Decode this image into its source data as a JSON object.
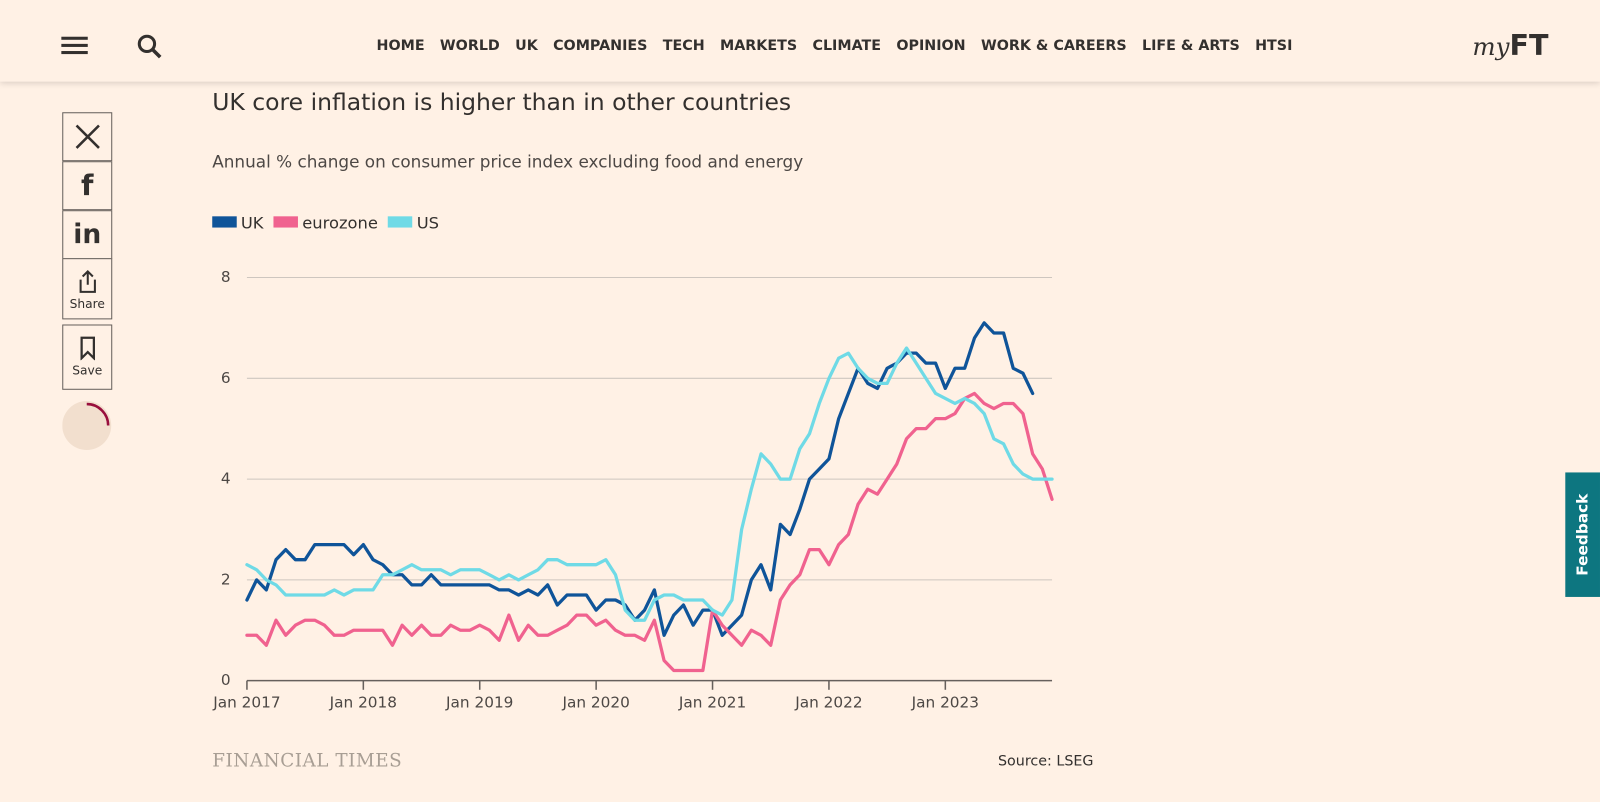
{
  "nav": {
    "items": [
      "HOME",
      "WORLD",
      "UK",
      "COMPANIES",
      "TECH",
      "MARKETS",
      "CLIMATE",
      "OPINION",
      "WORK & CAREERS",
      "LIFE & ARTS",
      "HTSI"
    ],
    "logo_my": "my",
    "logo_ft": "FT"
  },
  "share": {
    "share": "Share",
    "save": "Save"
  },
  "feedback": "Feedback",
  "chart_data": {
    "type": "line",
    "title": "UK core inflation is higher than in other countries",
    "subtitle": "Annual % change on consumer price index excluding food and energy",
    "x": [
      "2017-01",
      "2017-02",
      "2017-03",
      "2017-04",
      "2017-05",
      "2017-06",
      "2017-07",
      "2017-08",
      "2017-09",
      "2017-10",
      "2017-11",
      "2017-12",
      "2018-01",
      "2018-02",
      "2018-03",
      "2018-04",
      "2018-05",
      "2018-06",
      "2018-07",
      "2018-08",
      "2018-09",
      "2018-10",
      "2018-11",
      "2018-12",
      "2019-01",
      "2019-02",
      "2019-03",
      "2019-04",
      "2019-05",
      "2019-06",
      "2019-07",
      "2019-08",
      "2019-09",
      "2019-10",
      "2019-11",
      "2019-12",
      "2020-01",
      "2020-02",
      "2020-03",
      "2020-04",
      "2020-05",
      "2020-06",
      "2020-07",
      "2020-08",
      "2020-09",
      "2020-10",
      "2020-11",
      "2020-12",
      "2021-01",
      "2021-02",
      "2021-03",
      "2021-04",
      "2021-05",
      "2021-06",
      "2021-07",
      "2021-08",
      "2021-09",
      "2021-10",
      "2021-11",
      "2021-12",
      "2022-01",
      "2022-02",
      "2022-03",
      "2022-04",
      "2022-05",
      "2022-06",
      "2022-07",
      "2022-08",
      "2022-09",
      "2022-10",
      "2022-11",
      "2022-12",
      "2023-01",
      "2023-02",
      "2023-03",
      "2023-04",
      "2023-05",
      "2023-06",
      "2023-07",
      "2023-08",
      "2023-09",
      "2023-10",
      "2023-11",
      "2023-12"
    ],
    "series": [
      {
        "name": "UK",
        "color": "#0f5499",
        "values": [
          1.6,
          2.0,
          1.8,
          2.4,
          2.6,
          2.4,
          2.4,
          2.7,
          2.7,
          2.7,
          2.7,
          2.5,
          2.7,
          2.4,
          2.3,
          2.1,
          2.1,
          1.9,
          1.9,
          2.1,
          1.9,
          1.9,
          1.9,
          1.9,
          1.9,
          1.9,
          1.8,
          1.8,
          1.7,
          1.8,
          1.7,
          1.9,
          1.5,
          1.7,
          1.7,
          1.7,
          1.4,
          1.6,
          1.6,
          1.5,
          1.2,
          1.4,
          1.8,
          0.9,
          1.3,
          1.5,
          1.1,
          1.4,
          1.4,
          0.9,
          1.1,
          1.3,
          2.0,
          2.3,
          1.8,
          3.1,
          2.9,
          3.4,
          4.0,
          4.2,
          4.4,
          5.2,
          5.7,
          6.2,
          5.9,
          5.8,
          6.2,
          6.3,
          6.5,
          6.5,
          6.3,
          6.3,
          5.8,
          6.2,
          6.2,
          6.8,
          7.1,
          6.9,
          6.9,
          6.2,
          6.1,
          5.7,
          null,
          null
        ]
      },
      {
        "name": "eurozone",
        "color": "#f0628f",
        "values": [
          0.9,
          0.9,
          0.7,
          1.2,
          0.9,
          1.1,
          1.2,
          1.2,
          1.1,
          0.9,
          0.9,
          1.0,
          1.0,
          1.0,
          1.0,
          0.7,
          1.1,
          0.9,
          1.1,
          0.9,
          0.9,
          1.1,
          1.0,
          1.0,
          1.1,
          1.0,
          0.8,
          1.3,
          0.8,
          1.1,
          0.9,
          0.9,
          1.0,
          1.1,
          1.3,
          1.3,
          1.1,
          1.2,
          1.0,
          0.9,
          0.9,
          0.8,
          1.2,
          0.4,
          0.2,
          0.2,
          0.2,
          0.2,
          1.4,
          1.1,
          0.9,
          0.7,
          1.0,
          0.9,
          0.7,
          1.6,
          1.9,
          2.1,
          2.6,
          2.6,
          2.3,
          2.7,
          2.9,
          3.5,
          3.8,
          3.7,
          4.0,
          4.3,
          4.8,
          5.0,
          5.0,
          5.2,
          5.2,
          5.3,
          5.6,
          5.7,
          5.5,
          5.4,
          5.5,
          5.5,
          5.3,
          4.5,
          4.2,
          3.6
        ]
      },
      {
        "name": "US",
        "color": "#6fdae6",
        "values": [
          2.3,
          2.2,
          2.0,
          1.9,
          1.7,
          1.7,
          1.7,
          1.7,
          1.7,
          1.8,
          1.7,
          1.8,
          1.8,
          1.8,
          2.1,
          2.1,
          2.2,
          2.3,
          2.2,
          2.2,
          2.2,
          2.1,
          2.2,
          2.2,
          2.2,
          2.1,
          2.0,
          2.1,
          2.0,
          2.1,
          2.2,
          2.4,
          2.4,
          2.3,
          2.3,
          2.3,
          2.3,
          2.4,
          2.1,
          1.4,
          1.2,
          1.2,
          1.6,
          1.7,
          1.7,
          1.6,
          1.6,
          1.6,
          1.4,
          1.3,
          1.6,
          3.0,
          3.8,
          4.5,
          4.3,
          4.0,
          4.0,
          4.6,
          4.9,
          5.5,
          6.0,
          6.4,
          6.5,
          6.2,
          6.0,
          5.9,
          5.9,
          6.3,
          6.6,
          6.3,
          6.0,
          5.7,
          5.6,
          5.5,
          5.6,
          5.5,
          5.3,
          4.8,
          4.7,
          4.3,
          4.1,
          4.0,
          4.0,
          4.0
        ]
      }
    ],
    "xlim": [
      "2017-01",
      "2023-12"
    ],
    "xticks": [
      {
        "value": "2017-01",
        "label": "Jan 2017"
      },
      {
        "value": "2018-01",
        "label": "Jan 2018"
      },
      {
        "value": "2019-01",
        "label": "Jan 2019"
      },
      {
        "value": "2020-01",
        "label": "Jan 2020"
      },
      {
        "value": "2021-01",
        "label": "Jan 2021"
      },
      {
        "value": "2022-01",
        "label": "Jan 2022"
      },
      {
        "value": "2023-01",
        "label": "Jan 2023"
      }
    ],
    "ylim": [
      0,
      8
    ],
    "yticks": [
      0,
      2,
      4,
      6,
      8
    ],
    "grid": true,
    "legend": "top-left"
  },
  "footer": {
    "brand": "FINANCIAL TIMES",
    "source": "Source: LSEG"
  }
}
